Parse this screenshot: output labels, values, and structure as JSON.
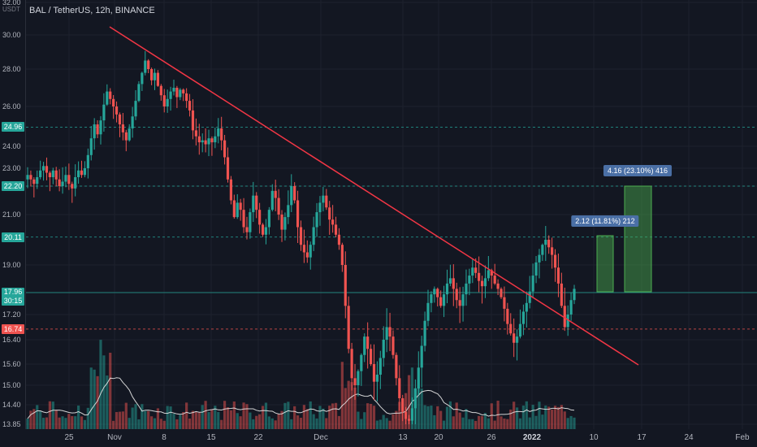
{
  "header": {
    "symbol": "BAL / TetherUS, 12h, BINANCE",
    "axis_unit": "USDT"
  },
  "colors": {
    "up": "#26a69a",
    "down": "#ef5350",
    "trendline": "#f23645",
    "target_box": "#4caf50",
    "ma": "#e8e8e8"
  },
  "chart_data": {
    "type": "candlestick",
    "title": "BAL / TetherUS, 12h, BINANCE",
    "y_axis": {
      "unit": "USDT",
      "ticks": [
        "32.00",
        "30.00",
        "28.00",
        "26.00",
        "24.00",
        "23.00",
        "22.00",
        "21.00",
        "19.00",
        "18.00",
        "17.20",
        "16.40",
        "15.60",
        "15.00",
        "14.40",
        "13.85"
      ]
    },
    "x_axis": {
      "ticks": [
        {
          "label": "25",
          "bold": false
        },
        {
          "label": "Nov",
          "bold": false
        },
        {
          "label": "8",
          "bold": false
        },
        {
          "label": "15",
          "bold": false
        },
        {
          "label": "22",
          "bold": false
        },
        {
          "label": "Dec",
          "bold": false
        },
        {
          "label": "13",
          "bold": false
        },
        {
          "label": "20",
          "bold": false
        },
        {
          "label": "26",
          "bold": false
        },
        {
          "label": "2022",
          "bold": true
        },
        {
          "label": "10",
          "bold": false
        },
        {
          "label": "17",
          "bold": false
        },
        {
          "label": "24",
          "bold": false
        },
        {
          "label": "Feb",
          "bold": false
        }
      ]
    },
    "horizontal_levels": [
      {
        "value": 24.96,
        "label": "24.96",
        "color": "#26a69a"
      },
      {
        "value": 22.2,
        "label": "22.20",
        "color": "#26a69a"
      },
      {
        "value": 20.11,
        "label": "20.11",
        "color": "#26a69a"
      },
      {
        "value": 17.96,
        "label": "17.96",
        "sublabel": "30:15",
        "color": "#26a69a"
      },
      {
        "value": 16.74,
        "label": "16.74",
        "color": "#ef5350"
      }
    ],
    "closes": [
      22.7,
      22.5,
      22.3,
      22.6,
      22.9,
      23.1,
      22.8,
      22.6,
      22.9,
      22.5,
      22.2,
      22.4,
      22.7,
      22.3,
      22.1,
      22.6,
      22.9,
      22.7,
      23.0,
      23.6,
      24.4,
      25.1,
      24.6,
      25.3,
      26.1,
      26.8,
      26.4,
      26.0,
      25.6,
      25.1,
      24.7,
      24.3,
      24.9,
      25.5,
      26.3,
      27.2,
      27.8,
      28.5,
      28.0,
      27.4,
      27.8,
      27.1,
      26.6,
      26.0,
      26.4,
      26.8,
      27.0,
      26.5,
      26.9,
      26.7,
      26.3,
      25.8,
      24.8,
      24.5,
      24.2,
      24.3,
      24.1,
      24.4,
      24.2,
      24.5,
      24.9,
      24.3,
      23.5,
      22.5,
      21.6,
      20.9,
      21.5,
      21.2,
      20.5,
      20.3,
      21.1,
      21.8,
      21.2,
      20.6,
      20.2,
      20.5,
      21.2,
      22.0,
      21.7,
      21.0,
      20.4,
      20.9,
      21.4,
      22.2,
      21.6,
      20.5,
      19.8,
      19.5,
      19.3,
      19.8,
      20.5,
      21.1,
      21.5,
      21.8,
      21.3,
      20.8,
      20.6,
      20.2,
      19.8,
      19.0,
      17.5,
      16.1,
      15.2,
      15.0,
      15.4,
      15.9,
      16.5,
      16.1,
      15.6,
      15.1,
      15.3,
      15.8,
      16.4,
      16.8,
      16.5,
      15.9,
      15.2,
      14.6,
      14.2,
      14.0,
      13.95,
      14.3,
      14.9,
      15.5,
      16.2,
      17.0,
      17.6,
      17.9,
      18.1,
      17.8,
      17.5,
      17.9,
      18.3,
      18.5,
      18.1,
      17.7,
      17.5,
      17.9,
      18.3,
      18.6,
      18.9,
      18.7,
      18.4,
      18.2,
      18.5,
      18.8,
      18.6,
      18.3,
      18.1,
      17.8,
      17.4,
      16.9,
      16.6,
      16.3,
      16.5,
      16.9,
      17.3,
      17.6,
      18.0,
      18.6,
      19.1,
      19.4,
      19.8,
      20.0,
      19.7,
      19.4,
      18.9,
      18.3,
      17.5,
      16.8,
      17.2,
      17.7,
      18.1
    ]
  }
}
